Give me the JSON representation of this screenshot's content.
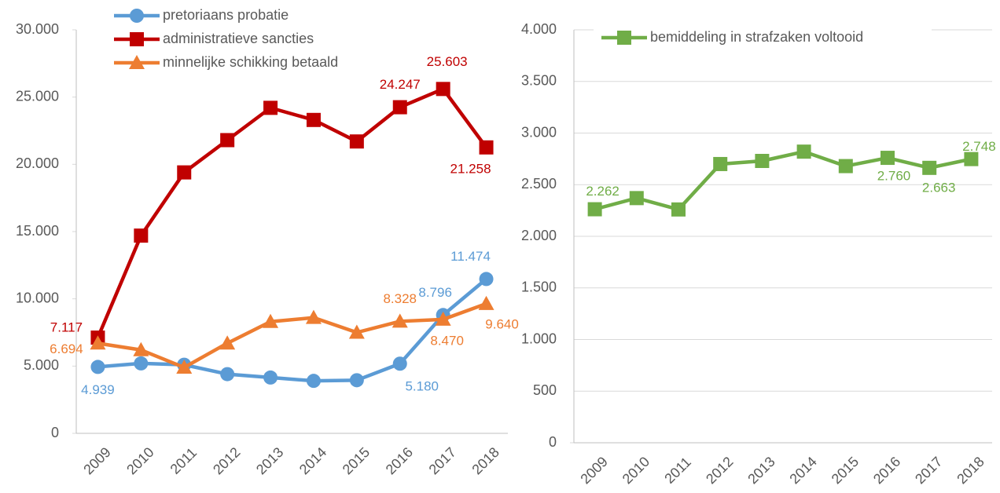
{
  "chart_data": [
    {
      "type": "line",
      "categories": [
        "2009",
        "2010",
        "2011",
        "2012",
        "2013",
        "2014",
        "2015",
        "2016",
        "2017",
        "2018"
      ],
      "ylim": [
        0,
        30000
      ],
      "yticks": [
        0,
        {
          "value": 5000,
          "label": "5.000"
        },
        {
          "value": 10000,
          "label": "10.000"
        },
        {
          "value": 15000,
          "label": "15.000"
        },
        {
          "value": 20000,
          "label": "20.000"
        },
        {
          "value": 25000,
          "label": "25.000"
        },
        {
          "value": 30000,
          "label": "30.000"
        }
      ],
      "grid": false,
      "series": [
        {
          "name": "pretoriaans probatie",
          "color": "#5b9bd5",
          "marker": "circle",
          "values": [
            4939,
            5200,
            5100,
            4400,
            4150,
            3900,
            3950,
            5180,
            8796,
            11474
          ],
          "value_labels": [
            "4.939",
            null,
            null,
            null,
            null,
            null,
            null,
            "5.180",
            "8.796",
            "11.474"
          ]
        },
        {
          "name": "administratieve sancties",
          "color": "#c00000",
          "marker": "square",
          "values": [
            7117,
            14700,
            19400,
            21800,
            24200,
            23300,
            21700,
            24247,
            25603,
            21258
          ],
          "value_labels": [
            "7.117",
            null,
            null,
            null,
            null,
            null,
            null,
            "24.247",
            "25.603",
            "21.258"
          ]
        },
        {
          "name": "minnelijke schikking betaald",
          "color": "#ed7d31",
          "marker": "triangle",
          "values": [
            6694,
            6200,
            4900,
            6700,
            8300,
            8600,
            7500,
            8328,
            8470,
            9640
          ],
          "value_labels": [
            "6.694",
            null,
            null,
            null,
            null,
            null,
            null,
            "8.328",
            "8.470",
            "9.640"
          ]
        }
      ]
    },
    {
      "type": "line",
      "categories": [
        "2009",
        "2010",
        "2011",
        "2012",
        "2013",
        "2014",
        "2015",
        "2016",
        "2017",
        "2018"
      ],
      "ylim": [
        0,
        4000
      ],
      "yticks": [
        0,
        500,
        {
          "value": 1000,
          "label": "1.000"
        },
        {
          "value": 1500,
          "label": "1.500"
        },
        {
          "value": 2000,
          "label": "2.000"
        },
        {
          "value": 2500,
          "label": "2.500"
        },
        {
          "value": 3000,
          "label": "3.000"
        },
        {
          "value": 3500,
          "label": "3.500"
        },
        {
          "value": 4000,
          "label": "4.000"
        }
      ],
      "grid": true,
      "series": [
        {
          "name": "bemiddeling in strafzaken voltooid",
          "color": "#70ad47",
          "marker": "square",
          "values": [
            2262,
            2370,
            2260,
            2700,
            2730,
            2820,
            2680,
            2760,
            2663,
            2748
          ],
          "value_labels": [
            "2.262",
            null,
            null,
            null,
            null,
            null,
            null,
            "2.760",
            "2.663",
            "2.748"
          ]
        }
      ]
    }
  ]
}
